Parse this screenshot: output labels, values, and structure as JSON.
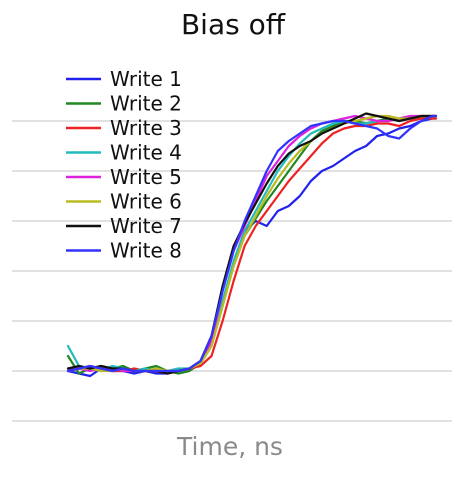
{
  "chart_data": {
    "type": "line",
    "title": "Bias off",
    "xlabel": "Time, ns",
    "ylabel": "",
    "xlim": [
      0,
      100
    ],
    "ylim": [
      0,
      6.5
    ],
    "yticks_gridlines": [
      0,
      1,
      2,
      3,
      4,
      5,
      6
    ],
    "grid": "horizontal",
    "legend_position": "top-left",
    "x": [
      0,
      3,
      6,
      9,
      12,
      15,
      18,
      21,
      24,
      27,
      30,
      33,
      36,
      39,
      42,
      45,
      48,
      51,
      54,
      57,
      60,
      63,
      66,
      69,
      72,
      75,
      78,
      81,
      84,
      87,
      90,
      93,
      96,
      99,
      100
    ],
    "series": [
      {
        "name": "Write 1",
        "color": "#2222ee",
        "values": [
          1.0,
          0.95,
          0.9,
          1.05,
          1.0,
          1.0,
          0.95,
          1.0,
          0.95,
          0.95,
          1.0,
          1.05,
          1.2,
          1.6,
          2.4,
          3.1,
          3.8,
          4.0,
          3.9,
          4.2,
          4.3,
          4.5,
          4.8,
          5.0,
          5.1,
          5.25,
          5.4,
          5.5,
          5.7,
          5.75,
          5.85,
          5.9,
          6.0,
          6.05,
          6.05
        ]
      },
      {
        "name": "Write 2",
        "color": "#228822",
        "values": [
          1.3,
          0.95,
          1.05,
          1.1,
          1.05,
          1.1,
          1.0,
          1.05,
          1.1,
          1.0,
          0.95,
          1.0,
          1.15,
          1.5,
          2.3,
          3.1,
          3.7,
          4.05,
          4.4,
          4.7,
          5.0,
          5.3,
          5.6,
          5.8,
          5.9,
          6.0,
          6.0,
          5.95,
          6.0,
          6.05,
          6.0,
          6.05,
          6.05,
          6.1,
          6.1
        ]
      },
      {
        "name": "Write 3",
        "color": "#ee2222",
        "values": [
          1.0,
          1.05,
          1.1,
          1.05,
          1.0,
          1.0,
          1.05,
          1.0,
          1.0,
          0.95,
          1.0,
          1.05,
          1.1,
          1.3,
          2.0,
          2.8,
          3.5,
          3.9,
          4.2,
          4.5,
          4.8,
          5.05,
          5.3,
          5.55,
          5.75,
          5.85,
          5.9,
          5.9,
          5.95,
          5.95,
          5.9,
          6.0,
          6.05,
          6.05,
          6.05
        ]
      },
      {
        "name": "Write 4",
        "color": "#22bbbb",
        "values": [
          1.5,
          1.1,
          1.05,
          1.0,
          1.1,
          1.05,
          1.0,
          1.05,
          1.0,
          1.0,
          1.05,
          1.05,
          1.2,
          1.6,
          2.4,
          3.2,
          3.8,
          4.2,
          4.6,
          5.0,
          5.3,
          5.55,
          5.75,
          5.85,
          5.95,
          6.0,
          5.95,
          5.95,
          6.0,
          6.0,
          6.05,
          6.05,
          6.1,
          6.1,
          6.1
        ]
      },
      {
        "name": "Write 5",
        "color": "#dd22dd",
        "values": [
          1.05,
          1.05,
          1.0,
          1.05,
          1.05,
          1.0,
          1.0,
          1.0,
          1.0,
          1.0,
          1.0,
          1.05,
          1.15,
          1.6,
          2.6,
          3.4,
          3.9,
          4.4,
          4.9,
          5.2,
          5.5,
          5.7,
          5.85,
          5.95,
          6.0,
          6.05,
          6.1,
          6.05,
          6.0,
          6.0,
          6.05,
          6.1,
          6.1,
          6.1,
          6.1
        ]
      },
      {
        "name": "Write 6",
        "color": "#bbbb22",
        "values": [
          1.0,
          1.05,
          1.05,
          1.0,
          1.0,
          1.05,
          1.0,
          1.0,
          1.05,
          1.0,
          1.0,
          1.05,
          1.15,
          1.5,
          2.3,
          3.1,
          3.7,
          4.1,
          4.5,
          4.85,
          5.15,
          5.4,
          5.6,
          5.75,
          5.85,
          5.95,
          6.0,
          6.05,
          6.1,
          6.1,
          6.05,
          6.05,
          6.1,
          6.1,
          6.1
        ]
      },
      {
        "name": "Write 7",
        "color": "#111111",
        "values": [
          1.05,
          1.1,
          1.05,
          1.1,
          1.05,
          1.05,
          1.0,
          1.0,
          1.0,
          0.95,
          1.0,
          1.05,
          1.2,
          1.7,
          2.7,
          3.5,
          3.95,
          4.35,
          4.75,
          5.1,
          5.35,
          5.5,
          5.6,
          5.75,
          5.85,
          5.95,
          6.05,
          6.15,
          6.1,
          6.05,
          6.0,
          6.05,
          6.1,
          6.1,
          6.1
        ]
      },
      {
        "name": "Write 8",
        "color": "#3333ff",
        "values": [
          1.0,
          1.05,
          1.1,
          1.05,
          1.0,
          1.05,
          1.0,
          1.0,
          1.0,
          1.0,
          1.0,
          1.05,
          1.2,
          1.7,
          2.6,
          3.4,
          4.0,
          4.5,
          5.0,
          5.4,
          5.6,
          5.75,
          5.9,
          5.95,
          6.0,
          6.0,
          5.95,
          5.9,
          5.85,
          5.7,
          5.65,
          5.85,
          6.0,
          6.1,
          6.1
        ]
      }
    ]
  }
}
